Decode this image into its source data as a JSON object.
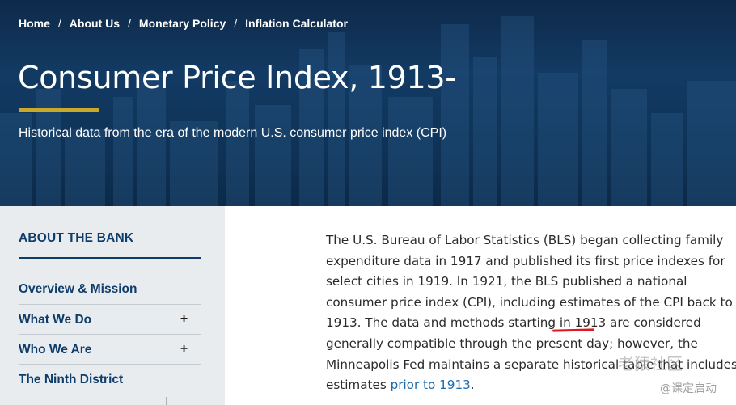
{
  "breadcrumb": {
    "items": [
      "Home",
      "About Us",
      "Monetary Policy",
      "Inflation Calculator"
    ],
    "separator": "/"
  },
  "hero": {
    "title": "Consumer Price Index, 1913-",
    "subtitle": "Historical data from the era of the modern U.S. consumer price index (CPI)"
  },
  "sidebar": {
    "heading": "ABOUT THE BANK",
    "items": [
      {
        "label": "Overview & Mission",
        "expandable": false
      },
      {
        "label": "What We Do",
        "expandable": true,
        "toggle": "+"
      },
      {
        "label": "Who We Are",
        "expandable": true,
        "toggle": "+"
      },
      {
        "label": "The Ninth District",
        "expandable": false
      }
    ]
  },
  "content": {
    "paragraph_lines": [
      "The U.S. Bureau of Labor Statistics (BLS) began collecting family",
      "expenditure data in 1917 and published its first price indexes for",
      "select cities in 1919. In 1921, the BLS published a national",
      "consumer price index (CPI), including estimates of the CPI back to",
      "1913. The data and methods starting in 1913 are considered",
      "generally compatible through the present day; however, the",
      "Minneapolis Fed maintains a separate historical table that includes"
    ],
    "last_line_prefix": "estimates ",
    "link_text": "prior to 1913",
    "last_line_suffix": "."
  },
  "watermark": {
    "line1": "老猿社区",
    "line2": "@课定启动"
  },
  "colors": {
    "hero_bg": "#123a63",
    "accent_gold": "#c8a92b",
    "sidebar_bg": "#e8ecef",
    "sidebar_text": "#0f3d6b",
    "link": "#1a6bb0",
    "annotation_red": "#e0181f"
  }
}
